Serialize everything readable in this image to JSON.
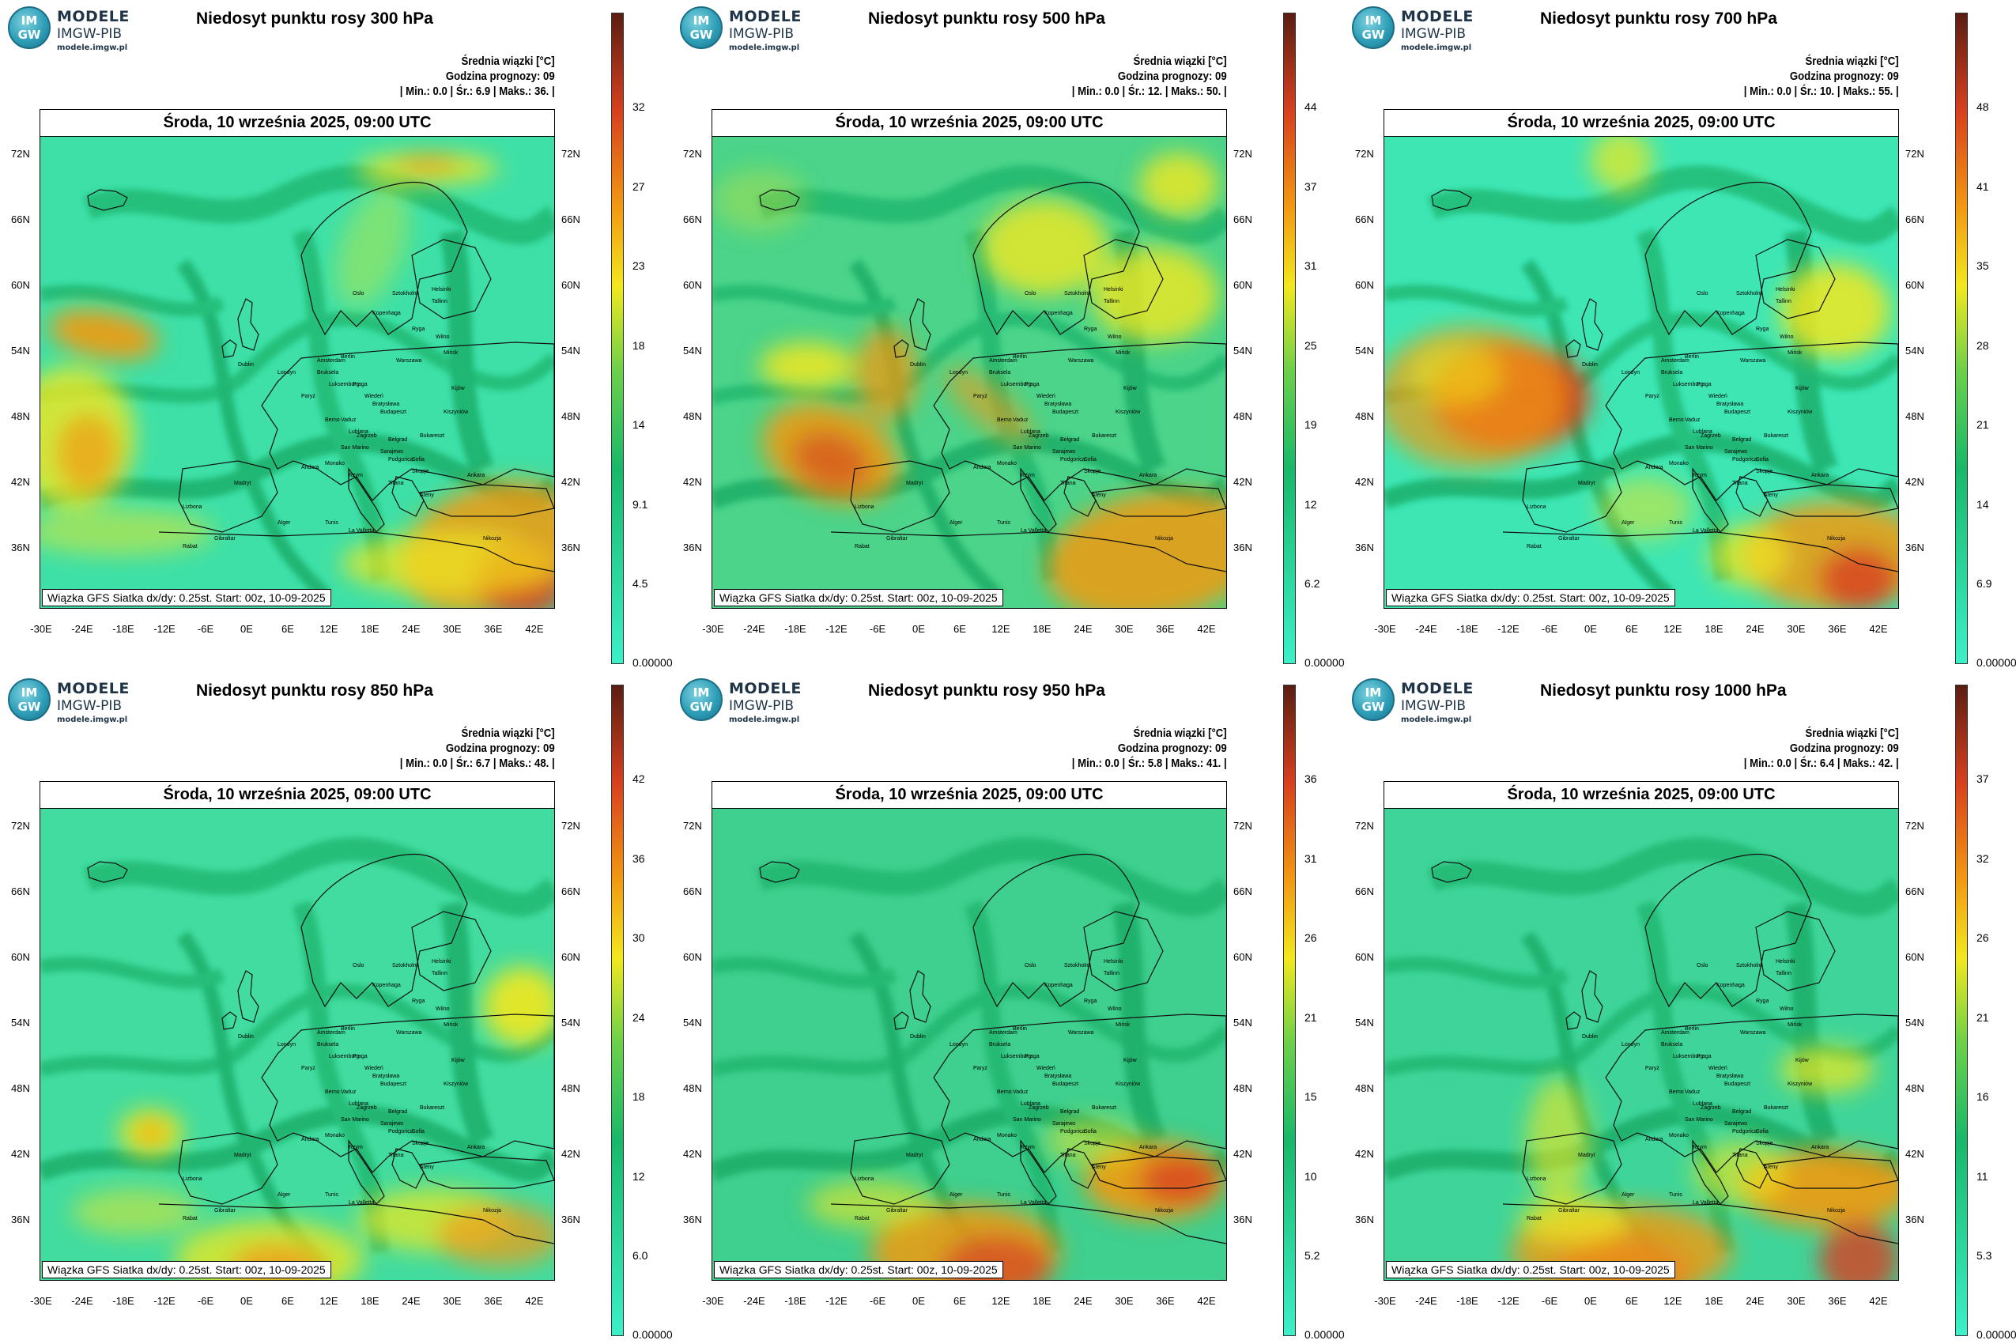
{
  "logo": {
    "badge_top": "IM",
    "badge_bottom": "GW",
    "name": "MODELE",
    "org": "IMGW-PIB",
    "url": "modele.imgw.pl"
  },
  "common": {
    "legend_title": "Średnia wiązki [°C]",
    "forecast_hour": "Godzina prognozy: 09",
    "date_line": "Środa, 10 września 2025, 09:00 UTC",
    "footer": "Wiązka GFS Siatka dx/dy: 0.25st. Start: 00z, 10-09-2025",
    "lat_labels": [
      "72N",
      "66N",
      "60N",
      "54N",
      "48N",
      "42N",
      "36N"
    ],
    "lon_labels": [
      "-30E",
      "-24E",
      "-18E",
      "-12E",
      "-6E",
      "0E",
      "6E",
      "12E",
      "18E",
      "24E",
      "30E",
      "36E",
      "42E"
    ],
    "cities": [
      "Oslo",
      "Sztokholm",
      "Helsinki",
      "Tallinn",
      "Ryga",
      "Wilno",
      "Kopenhaga",
      "Mińsk",
      "Amsterdam",
      "Berlin",
      "Warszawa",
      "Bruksela",
      "Londyn",
      "Dublin",
      "Praga",
      "Luksemburg",
      "Kijów",
      "Paryż",
      "Wiedeń",
      "Bratysława",
      "Budapeszt",
      "Kiszyniów",
      "Vaduz",
      "Berno",
      "Lublana",
      "Zagrzeb",
      "Belgrad",
      "Sarajewo",
      "Bukareszt",
      "San Marino",
      "Podgorica",
      "Sofia",
      "Andora",
      "Monako",
      "Rzym",
      "Tirana",
      "Skopje",
      "Madryt",
      "Ateny",
      "Ankara",
      "Lizbona",
      "Alger",
      "Tunis",
      "La Valletta",
      "Gibraltar",
      "Rabat",
      "Nikozja"
    ],
    "colors": {
      "low": "#3cf0c8",
      "mid": "#18b86a",
      "yellow": "#f2e81e",
      "orange": "#f29a12",
      "red": "#d8401e",
      "dark": "#5a1e12"
    }
  },
  "panels": [
    {
      "id": "300",
      "title": "Niedosyt punktu rosy 300 hPa",
      "stats": "| Min.:     0.0 | Śr.:      6.9 | Maks.:     36. |",
      "cbar_ticks": [
        "32",
        "27",
        "23",
        "18",
        "14",
        "9.1",
        "4.5",
        "0.00000"
      ]
    },
    {
      "id": "500",
      "title": "Niedosyt punktu rosy 500 hPa",
      "stats": "| Min.:     0.0 | Śr.:      12. | Maks.:     50. |",
      "cbar_ticks": [
        "44",
        "37",
        "31",
        "25",
        "19",
        "12",
        "6.2",
        "0.00000"
      ]
    },
    {
      "id": "700",
      "title": "Niedosyt punktu rosy 700 hPa",
      "stats": "| Min.:     0.0 | Śr.:      10. | Maks.:     55. |",
      "cbar_ticks": [
        "48",
        "41",
        "35",
        "28",
        "21",
        "14",
        "6.9",
        "0.00000"
      ]
    },
    {
      "id": "850",
      "title": "Niedosyt punktu rosy 850 hPa",
      "stats": "| Min.:     0.0 | Śr.:      6.7 | Maks.:     48. |",
      "cbar_ticks": [
        "42",
        "36",
        "30",
        "24",
        "18",
        "12",
        "6.0",
        "0.00000"
      ]
    },
    {
      "id": "950",
      "title": "Niedosyt punktu rosy 950 hPa",
      "stats": "| Min.:     0.0 | Śr.:      5.8 | Maks.:     41. |",
      "cbar_ticks": [
        "36",
        "31",
        "26",
        "21",
        "15",
        "10",
        "5.2",
        "0.00000"
      ]
    },
    {
      "id": "1000",
      "title": "Niedosyt punktu rosy 1000 hPa",
      "stats": "| Min.:     0.0 | Śr.:      6.4 | Maks.:     42. |",
      "cbar_ticks": [
        "37",
        "32",
        "26",
        "21",
        "16",
        "11",
        "5.3",
        "0.00000"
      ]
    }
  ]
}
